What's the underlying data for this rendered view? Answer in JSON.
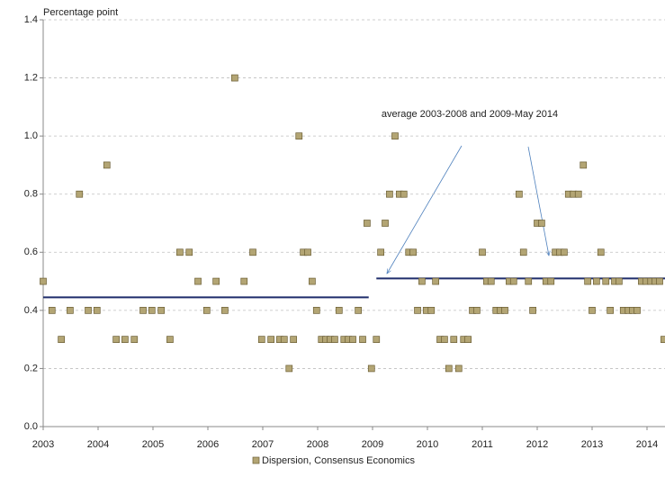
{
  "chart_data": {
    "type": "scatter",
    "y_label": "Percentage point",
    "annotation": "average 2003-2008 and 2009-May 2014",
    "xlim": [
      2003,
      2014.33
    ],
    "xticks": [
      2003,
      2004,
      2005,
      2006,
      2007,
      2008,
      2009,
      2010,
      2011,
      2012,
      2013,
      2014
    ],
    "ylim": [
      0,
      1.4
    ],
    "yticks": [
      {
        "value": 0,
        "label": "0.0"
      },
      {
        "value": 0.2,
        "label": "0.2"
      },
      {
        "value": 0.4,
        "label": "0.4"
      },
      {
        "value": 0.6,
        "label": "0.6"
      },
      {
        "value": 0.8,
        "label": "0.8"
      },
      {
        "value": 1,
        "label": "1.0"
      },
      {
        "value": 1.2,
        "label": "1.2"
      },
      {
        "value": 1.4,
        "label": "1.4"
      }
    ],
    "grid": true,
    "legend": "bottom",
    "series": [
      {
        "name": "Dispersion, Consensus Economics",
        "color": "#b3a574",
        "x": [
          2003.0,
          2003.16,
          2003.33,
          2003.49,
          2003.66,
          2003.82,
          2003.98,
          2004.16,
          2004.33,
          2004.49,
          2004.66,
          2004.82,
          2004.98,
          2005.15,
          2005.31,
          2005.49,
          2005.66,
          2005.82,
          2005.98,
          2006.15,
          2006.31,
          2006.49,
          2006.66,
          2006.82,
          2006.98,
          2007.15,
          2007.31,
          2007.39,
          2007.48,
          2007.56,
          2007.66,
          2007.74,
          2007.82,
          2007.9,
          2007.98,
          2008.07,
          2008.15,
          2008.23,
          2008.31,
          2008.39,
          2008.48,
          2008.56,
          2008.64,
          2008.74,
          2008.82,
          2008.9,
          2008.98,
          2009.07,
          2009.15,
          2009.23,
          2009.31,
          2009.41,
          2009.49,
          2009.57,
          2009.66,
          2009.74,
          2009.82,
          2009.9,
          2009.98,
          2010.07,
          2010.15,
          2010.23,
          2010.31,
          2010.39,
          2010.48,
          2010.57,
          2010.66,
          2010.74,
          2010.82,
          2010.9,
          2011.0,
          2011.08,
          2011.16,
          2011.25,
          2011.33,
          2011.41,
          2011.49,
          2011.57,
          2011.67,
          2011.75,
          2011.84,
          2011.92,
          2012.0,
          2012.08,
          2012.16,
          2012.25,
          2012.33,
          2012.41,
          2012.49,
          2012.57,
          2012.66,
          2012.75,
          2012.84,
          2012.92,
          2013.0,
          2013.08,
          2013.16,
          2013.25,
          2013.33,
          2013.41,
          2013.49,
          2013.57,
          2013.66,
          2013.74,
          2013.82,
          2013.9,
          2013.98,
          2014.07,
          2014.15,
          2014.23,
          2014.31
        ],
        "values": [
          0.5,
          0.4,
          0.3,
          0.4,
          0.8,
          0.4,
          0.4,
          0.9,
          0.3,
          0.3,
          0.3,
          0.4,
          0.4,
          0.4,
          0.3,
          0.6,
          0.6,
          0.5,
          0.4,
          0.5,
          0.4,
          1.2,
          0.5,
          0.6,
          0.3,
          0.3,
          0.3,
          0.3,
          0.2,
          0.3,
          1.0,
          0.6,
          0.6,
          0.5,
          0.4,
          0.3,
          0.3,
          0.3,
          0.3,
          0.4,
          0.3,
          0.3,
          0.3,
          0.4,
          0.3,
          0.7,
          0.2,
          0.3,
          0.6,
          0.7,
          0.8,
          1.0,
          0.8,
          0.8,
          0.6,
          0.6,
          0.4,
          0.5,
          0.4,
          0.4,
          0.5,
          0.3,
          0.3,
          0.2,
          0.3,
          0.2,
          0.3,
          0.3,
          0.4,
          0.4,
          0.6,
          0.5,
          0.5,
          0.4,
          0.4,
          0.4,
          0.5,
          0.5,
          0.8,
          0.6,
          0.5,
          0.4,
          0.7,
          0.7,
          0.5,
          0.5,
          0.6,
          0.6,
          0.6,
          0.8,
          0.8,
          0.8,
          0.9,
          0.5,
          0.4,
          0.5,
          0.6,
          0.5,
          0.4,
          0.5,
          0.5,
          0.4,
          0.4,
          0.4,
          0.4,
          0.5,
          0.5,
          0.5,
          0.5,
          0.5,
          0.3
        ]
      }
    ],
    "average_lines": {
      "color": "#1f2d6b",
      "lines": [
        {
          "x": [
            2003,
            2008.93
          ],
          "values": [
            0.445,
            0.445
          ]
        },
        {
          "x": [
            2009.07,
            2014.33
          ],
          "values": [
            0.51,
            0.51
          ]
        }
      ]
    }
  }
}
